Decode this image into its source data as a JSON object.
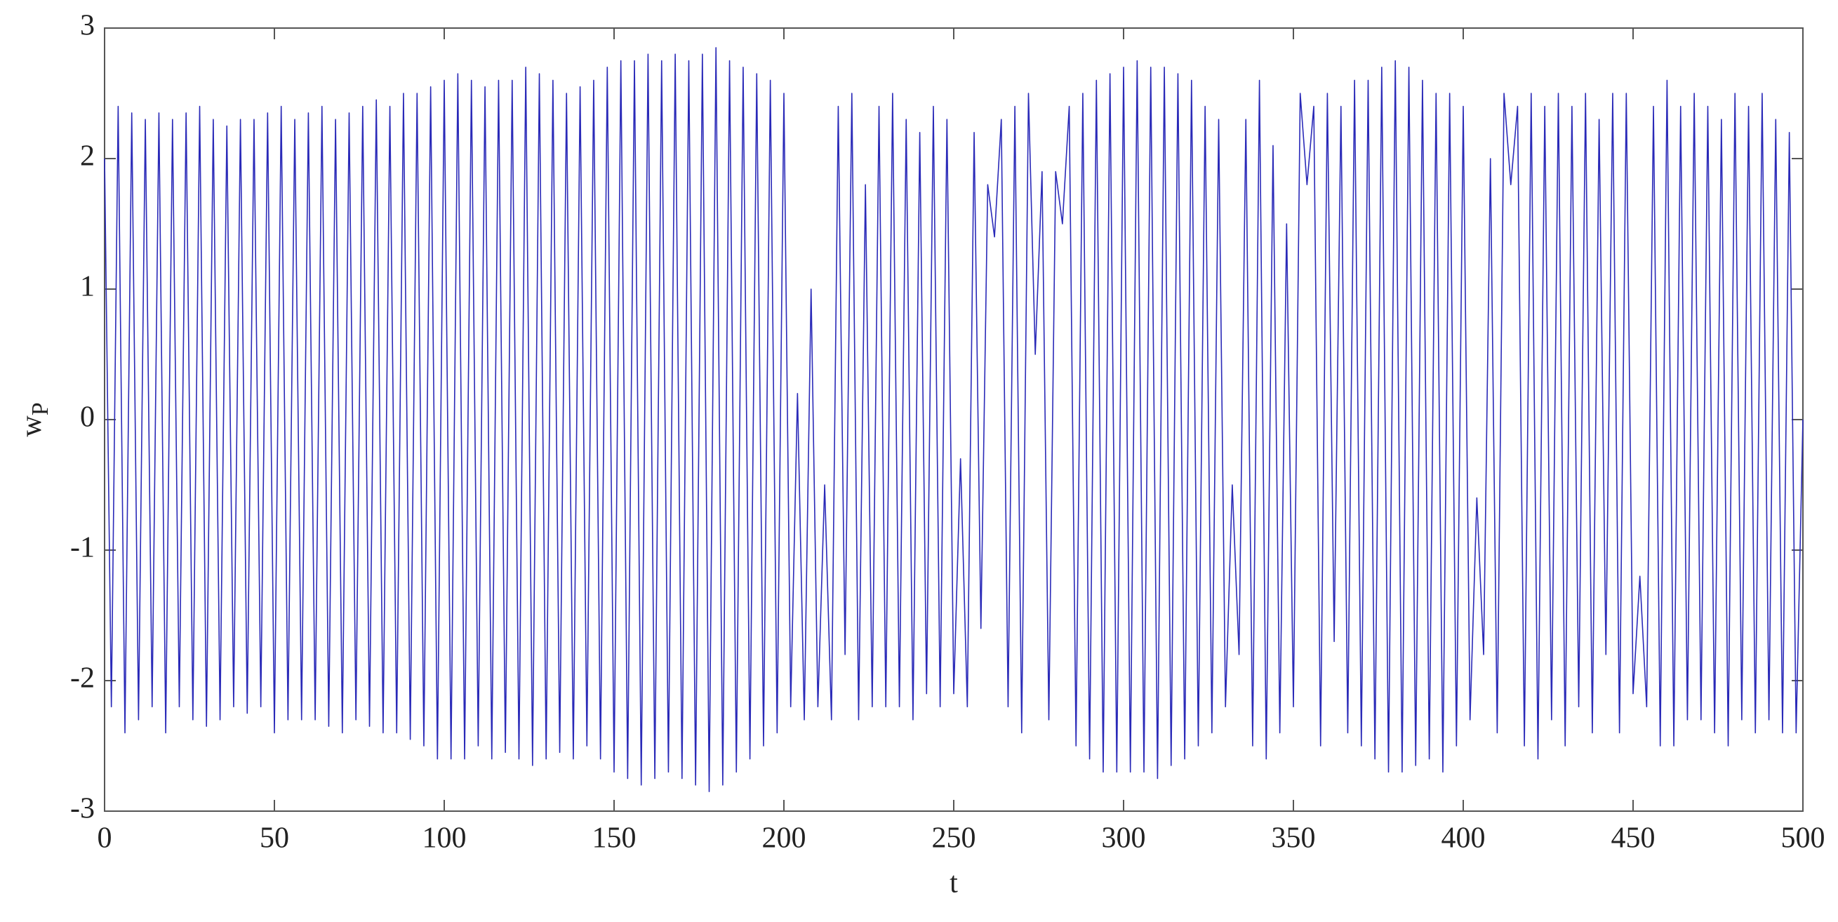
{
  "chart_data": {
    "type": "line",
    "xlabel": "t",
    "ylabel": "w",
    "ylabel_subscript": "P",
    "xlim": [
      0,
      500
    ],
    "ylim": [
      -3,
      3
    ],
    "xticks": [
      0,
      50,
      100,
      150,
      200,
      250,
      300,
      350,
      400,
      450,
      500
    ],
    "yticks": [
      -3,
      -2,
      -1,
      0,
      1,
      2,
      3
    ],
    "grid": false,
    "color": "#2a2ab8",
    "x": [
      0,
      2,
      4,
      6,
      8,
      10,
      12,
      14,
      16,
      18,
      20,
      22,
      24,
      26,
      28,
      30,
      32,
      34,
      36,
      38,
      40,
      42,
      44,
      46,
      48,
      50,
      52,
      54,
      56,
      58,
      60,
      62,
      64,
      66,
      68,
      70,
      72,
      74,
      76,
      78,
      80,
      82,
      84,
      86,
      88,
      90,
      92,
      94,
      96,
      98,
      100,
      102,
      104,
      106,
      108,
      110,
      112,
      114,
      116,
      118,
      120,
      122,
      124,
      126,
      128,
      130,
      132,
      134,
      136,
      138,
      140,
      142,
      144,
      146,
      148,
      150,
      152,
      154,
      156,
      158,
      160,
      162,
      164,
      166,
      168,
      170,
      172,
      174,
      176,
      178,
      180,
      182,
      184,
      186,
      188,
      190,
      192,
      194,
      196,
      198,
      200,
      202,
      204,
      206,
      208,
      210,
      212,
      214,
      216,
      218,
      220,
      222,
      224,
      226,
      228,
      230,
      232,
      234,
      236,
      238,
      240,
      242,
      244,
      246,
      248,
      250,
      252,
      254,
      256,
      258,
      260,
      262,
      264,
      266,
      268,
      270,
      272,
      274,
      276,
      278,
      280,
      282,
      284,
      286,
      288,
      290,
      292,
      294,
      296,
      298,
      300,
      302,
      304,
      306,
      308,
      310,
      312,
      314,
      316,
      318,
      320,
      322,
      324,
      326,
      328,
      330,
      332,
      334,
      336,
      338,
      340,
      342,
      344,
      346,
      348,
      350,
      352,
      354,
      356,
      358,
      360,
      362,
      364,
      366,
      368,
      370,
      372,
      374,
      376,
      378,
      380,
      382,
      384,
      386,
      388,
      390,
      392,
      394,
      396,
      398,
      400,
      402,
      404,
      406,
      408,
      410,
      412,
      414,
      416,
      418,
      420,
      422,
      424,
      426,
      428,
      430,
      432,
      434,
      436,
      438,
      440,
      442,
      444,
      446,
      448,
      450,
      452,
      454,
      456,
      458,
      460,
      462,
      464,
      466,
      468,
      470,
      472,
      474,
      476,
      478,
      480,
      482,
      484,
      486,
      488,
      490,
      492,
      494,
      496,
      498,
      500
    ],
    "values": [
      2.0,
      -2.2,
      2.4,
      -2.4,
      2.35,
      -2.3,
      2.3,
      -2.2,
      2.35,
      -2.4,
      2.3,
      -2.2,
      2.35,
      -2.3,
      2.4,
      -2.35,
      2.3,
      -2.3,
      2.25,
      -2.2,
      2.3,
      -2.25,
      2.3,
      -2.2,
      2.35,
      -2.4,
      2.4,
      -2.3,
      2.3,
      -2.3,
      2.35,
      -2.3,
      2.4,
      -2.35,
      2.3,
      -2.4,
      2.35,
      -2.3,
      2.4,
      -2.35,
      2.45,
      -2.4,
      2.4,
      -2.4,
      2.5,
      -2.45,
      2.5,
      -2.5,
      2.55,
      -2.6,
      2.6,
      -2.6,
      2.65,
      -2.6,
      2.6,
      -2.5,
      2.55,
      -2.6,
      2.6,
      -2.55,
      2.6,
      -2.6,
      2.7,
      -2.65,
      2.65,
      -2.6,
      2.6,
      -2.55,
      2.5,
      -2.6,
      2.55,
      -2.5,
      2.6,
      -2.6,
      2.7,
      -2.7,
      2.75,
      -2.75,
      2.75,
      -2.8,
      2.8,
      -2.75,
      2.75,
      -2.7,
      2.8,
      -2.75,
      2.75,
      -2.8,
      2.8,
      -2.85,
      2.85,
      -2.8,
      2.75,
      -2.7,
      2.7,
      -2.6,
      2.65,
      -2.5,
      2.6,
      -2.4,
      2.5,
      -2.2,
      0.2,
      -2.3,
      1.0,
      -2.2,
      -0.5,
      -2.3,
      2.4,
      -1.8,
      2.5,
      -2.3,
      1.8,
      -2.2,
      2.4,
      -2.2,
      2.5,
      -2.2,
      2.3,
      -2.3,
      2.2,
      -2.1,
      2.4,
      -2.2,
      2.3,
      -2.1,
      -0.3,
      -2.2,
      2.2,
      -1.6,
      1.8,
      1.4,
      2.3,
      -2.2,
      2.4,
      -2.4,
      2.5,
      0.5,
      1.9,
      -2.3,
      1.9,
      1.5,
      2.4,
      -2.5,
      2.5,
      -2.6,
      2.6,
      -2.7,
      2.65,
      -2.7,
      2.7,
      -2.7,
      2.75,
      -2.7,
      2.7,
      -2.75,
      2.7,
      -2.65,
      2.65,
      -2.6,
      2.6,
      -2.5,
      2.4,
      -2.4,
      2.3,
      -2.2,
      -0.5,
      -1.8,
      2.3,
      -2.5,
      2.6,
      -2.6,
      2.1,
      -2.4,
      1.5,
      -2.2,
      2.5,
      1.8,
      2.4,
      -2.5,
      2.5,
      -1.7,
      2.4,
      -2.4,
      2.6,
      -2.5,
      2.6,
      -2.6,
      2.7,
      -2.7,
      2.75,
      -2.7,
      2.7,
      -2.65,
      2.6,
      -2.6,
      2.5,
      -2.7,
      2.5,
      -2.5,
      2.4,
      -2.3,
      -0.6,
      -1.8,
      2.0,
      -2.4,
      2.5,
      1.8,
      2.4,
      -2.5,
      2.5,
      -2.6,
      2.4,
      -2.3,
      2.5,
      -2.5,
      2.4,
      -2.2,
      2.5,
      -2.4,
      2.3,
      -1.8,
      2.5,
      -2.4,
      2.5,
      -2.1,
      -1.2,
      -2.2,
      2.4,
      -2.5,
      2.6,
      -2.5,
      2.4,
      -2.3,
      2.5,
      -2.3,
      2.4,
      -2.4,
      2.3,
      -2.5,
      2.5,
      -2.3,
      2.4,
      -2.4,
      2.5,
      -2.3,
      2.3,
      -2.4,
      2.2,
      -2.4,
      0.0
    ]
  }
}
